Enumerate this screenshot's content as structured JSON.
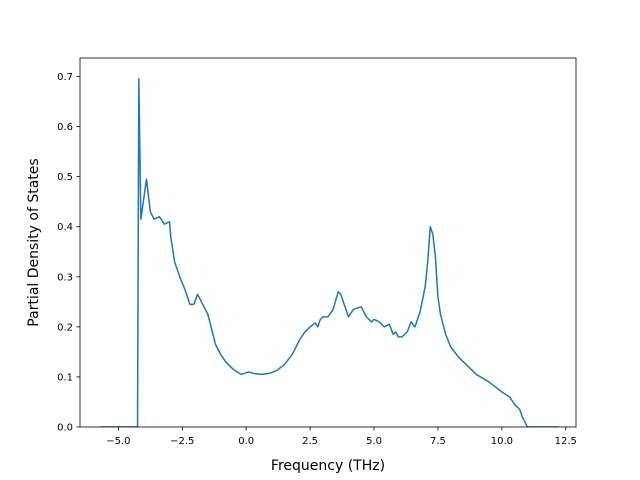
{
  "chart_data": {
    "type": "line",
    "title": "",
    "xlabel": "Frequency (THz)",
    "ylabel": "Partial Density of States",
    "xlim": [
      -6.5,
      12.9
    ],
    "ylim": [
      0.0,
      0.737
    ],
    "xticks": [
      -5.0,
      -2.5,
      0.0,
      2.5,
      5.0,
      7.5,
      10.0,
      12.5
    ],
    "xtick_labels": [
      "−5.0",
      "−2.5",
      "0.0",
      "2.5",
      "5.0",
      "7.5",
      "10.0",
      "12.5"
    ],
    "yticks": [
      0.0,
      0.1,
      0.2,
      0.3,
      0.4,
      0.5,
      0.6,
      0.7
    ],
    "ytick_labels": [
      "0.0",
      "0.1",
      "0.2",
      "0.3",
      "0.4",
      "0.5",
      "0.6",
      "0.7"
    ],
    "grid": false,
    "series": [
      {
        "color": "#1f77b4",
        "x": [
          -5.7,
          -4.3,
          -4.25,
          -4.2,
          -4.12,
          -4.05,
          -3.9,
          -3.75,
          -3.6,
          -3.4,
          -3.2,
          -3.0,
          -2.95,
          -2.8,
          -2.6,
          -2.4,
          -2.2,
          -2.05,
          -1.9,
          -1.7,
          -1.5,
          -1.3,
          -1.2,
          -1.0,
          -0.8,
          -0.5,
          -0.2,
          0.1,
          0.3,
          0.6,
          0.9,
          1.2,
          1.5,
          1.8,
          2.1,
          2.3,
          2.5,
          2.7,
          2.8,
          2.9,
          3.0,
          3.2,
          3.4,
          3.6,
          3.7,
          3.8,
          4.0,
          4.2,
          4.5,
          4.7,
          4.9,
          5.0,
          5.2,
          5.4,
          5.6,
          5.75,
          5.85,
          5.95,
          6.1,
          6.3,
          6.45,
          6.6,
          6.8,
          7.0,
          7.1,
          7.2,
          7.3,
          7.4,
          7.5,
          7.6,
          7.8,
          8.0,
          8.3,
          8.7,
          9.0,
          9.5,
          10.0,
          10.3,
          10.5,
          10.7,
          10.8,
          11.0,
          11.5,
          12.2
        ],
        "y": [
          0.0,
          0.0,
          0.0,
          0.695,
          0.415,
          0.44,
          0.495,
          0.43,
          0.415,
          0.42,
          0.405,
          0.41,
          0.38,
          0.33,
          0.3,
          0.275,
          0.245,
          0.245,
          0.265,
          0.245,
          0.225,
          0.185,
          0.165,
          0.145,
          0.13,
          0.115,
          0.105,
          0.11,
          0.107,
          0.105,
          0.107,
          0.113,
          0.125,
          0.145,
          0.175,
          0.19,
          0.2,
          0.208,
          0.2,
          0.215,
          0.22,
          0.22,
          0.235,
          0.27,
          0.265,
          0.25,
          0.22,
          0.235,
          0.24,
          0.22,
          0.21,
          0.215,
          0.21,
          0.2,
          0.205,
          0.185,
          0.19,
          0.18,
          0.18,
          0.19,
          0.21,
          0.2,
          0.23,
          0.28,
          0.33,
          0.4,
          0.385,
          0.34,
          0.26,
          0.225,
          0.185,
          0.16,
          0.14,
          0.12,
          0.105,
          0.09,
          0.07,
          0.06,
          0.045,
          0.035,
          0.02,
          0.0,
          0.0,
          0.0
        ]
      }
    ]
  }
}
